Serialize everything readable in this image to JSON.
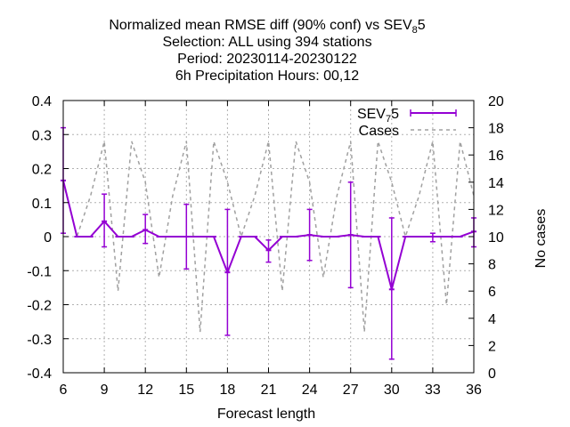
{
  "chart_data": {
    "type": "line",
    "title": {
      "line1_pre": "Normalized mean RMSE diff (90% conf) vs SEV",
      "line1_sub": "8",
      "line1_post": "5",
      "line2": "Selection: ALL using   394 stations",
      "line3": "Period: 20230114-20230122",
      "line4": "6h Precipitation   Hours:  00,12"
    },
    "xlabel": "Forecast length",
    "ylabel_right": "No cases",
    "xlim": [
      6,
      36
    ],
    "ylim": [
      -0.4,
      0.4
    ],
    "y2lim": [
      0,
      20
    ],
    "xticks": [
      6,
      9,
      12,
      15,
      18,
      21,
      24,
      27,
      30,
      33,
      36
    ],
    "yticks": [
      -0.4,
      -0.3,
      -0.2,
      -0.1,
      0,
      0.1,
      0.2,
      0.3,
      0.4
    ],
    "yticklabels": [
      "-0.4",
      "-0.3",
      "-0.2",
      "-0.1",
      "0",
      "0.1",
      "0.2",
      "0.3",
      "0.4"
    ],
    "y2ticks": [
      0,
      2,
      4,
      6,
      8,
      10,
      12,
      14,
      16,
      18,
      20
    ],
    "grid": true,
    "legend_position": "top-right",
    "colors": {
      "primary": "#9400d3",
      "secondary": "#a0a0a0",
      "grid": "#b0b0b0"
    },
    "series": [
      {
        "name_pre": "SEV",
        "name_sub": "7",
        "name_post": "5",
        "axis": "left",
        "style": "line-errorbars",
        "x": [
          6,
          7,
          8,
          9,
          10,
          11,
          12,
          13,
          14,
          15,
          16,
          17,
          18,
          19,
          20,
          21,
          22,
          23,
          24,
          25,
          26,
          27,
          28,
          29,
          30,
          31,
          32,
          33,
          34,
          35,
          36
        ],
        "values": [
          0.165,
          0.0,
          0.0,
          0.045,
          0.0,
          0.0,
          0.02,
          0.0,
          0.0,
          0.0,
          0.0,
          0.0,
          -0.105,
          0.0,
          0.0,
          -0.04,
          0.0,
          0.0,
          0.005,
          0.0,
          0.0,
          0.005,
          0.0,
          0.0,
          -0.155,
          0.0,
          0.0,
          0.0,
          0.0,
          0.0,
          0.015
        ],
        "err_low": [
          0.01,
          0.0,
          0.0,
          -0.03,
          0.0,
          0.0,
          -0.02,
          0.0,
          0.0,
          -0.095,
          0.0,
          0.0,
          -0.29,
          0.0,
          0.0,
          -0.075,
          0.0,
          0.0,
          -0.07,
          0.0,
          0.0,
          -0.15,
          0.0,
          0.0,
          -0.36,
          0.0,
          0.0,
          -0.015,
          0.0,
          0.0,
          -0.03
        ],
        "err_high": [
          0.32,
          0.0,
          0.0,
          0.125,
          0.0,
          0.0,
          0.065,
          0.0,
          0.0,
          0.095,
          0.0,
          0.0,
          0.08,
          0.0,
          0.0,
          -0.01,
          0.0,
          0.0,
          0.08,
          0.0,
          0.0,
          0.16,
          0.0,
          0.0,
          0.055,
          0.0,
          0.0,
          0.01,
          0.0,
          0.0,
          0.055
        ]
      },
      {
        "name": "Cases",
        "axis": "right",
        "style": "dashed",
        "x": [
          6,
          7,
          8,
          9,
          10,
          11,
          12,
          13,
          14,
          15,
          16,
          17,
          18,
          19,
          20,
          21,
          22,
          23,
          24,
          25,
          26,
          27,
          28,
          29,
          30,
          31,
          32,
          33,
          34,
          35,
          36
        ],
        "values": [
          14,
          10,
          13,
          17,
          6,
          17,
          14,
          7,
          13,
          17,
          3,
          17,
          14,
          10,
          13,
          17,
          6,
          17,
          14,
          7,
          13,
          17,
          3,
          17,
          14,
          10,
          13,
          17,
          5,
          17,
          13
        ]
      }
    ]
  }
}
